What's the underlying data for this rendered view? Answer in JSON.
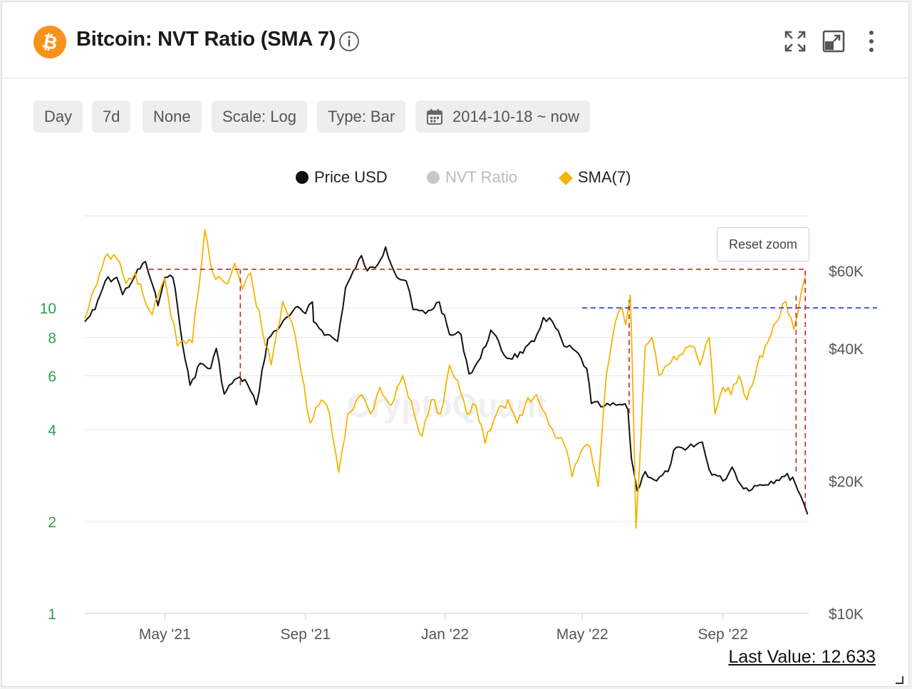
{
  "header": {
    "title": "Bitcoin: NVT Ratio (SMA 7)",
    "icons": [
      "bitcoin-logo-icon",
      "info-icon",
      "expand-icon",
      "popout-icon",
      "more-vertical-icon"
    ]
  },
  "toolbar": {
    "buttons": [
      "Day",
      "7d",
      "None",
      "Scale: Log",
      "Type: Bar"
    ],
    "date_range": "2014-10-18 ~ now"
  },
  "legend": {
    "items": [
      {
        "label": "Price USD",
        "color": "#111111",
        "marker": "circle"
      },
      {
        "label": "NVT Ratio",
        "color": "#c8c8cc",
        "marker": "circle"
      },
      {
        "label": "SMA(7)",
        "color": "#f5b300",
        "marker": "diamond"
      }
    ]
  },
  "reset_zoom": "Reset zoom",
  "watermark": "CryptoQuant",
  "last_value": "Last Value: 12.633",
  "colors": {
    "price": "#111111",
    "sma": "#f5b300",
    "left_axis_text": "#2e9e4f",
    "annotation_red": "#c62828",
    "annotation_blue": "#1e3adb",
    "grid": "#e6e6e6"
  },
  "chart_data": {
    "type": "line",
    "x_range": [
      "2021-02-20",
      "2022-11-15"
    ],
    "x_ticks": [
      {
        "date": "2021-05-01",
        "label": "May '21"
      },
      {
        "date": "2021-09-01",
        "label": "Sep '21"
      },
      {
        "date": "2022-01-01",
        "label": "Jan '22"
      },
      {
        "date": "2022-05-01",
        "label": "May '22"
      },
      {
        "date": "2022-09-01",
        "label": "Sep '22"
      }
    ],
    "y_left": {
      "scale": "log",
      "range": [
        1,
        20
      ],
      "ticks": [
        {
          "value": 1,
          "label": "1"
        },
        {
          "value": 2,
          "label": "2"
        },
        {
          "value": 4,
          "label": "4"
        },
        {
          "value": 6,
          "label": "6"
        },
        {
          "value": 8,
          "label": "8"
        },
        {
          "value": 10,
          "label": "10"
        }
      ]
    },
    "y_right": {
      "scale": "log",
      "range": [
        10000,
        80000
      ],
      "ticks": [
        {
          "value": 10000,
          "label": "$10K"
        },
        {
          "value": 20000,
          "label": "$20K"
        },
        {
          "value": 40000,
          "label": "$40K"
        },
        {
          "value": 60000,
          "label": "$60K"
        }
      ]
    },
    "series": [
      {
        "name": "Price USD",
        "axis": "right",
        "points": [
          [
            "2021-02-20",
            46000
          ],
          [
            "2021-03-01",
            49000
          ],
          [
            "2021-03-10",
            57000
          ],
          [
            "2021-03-20",
            58000
          ],
          [
            "2021-03-25",
            53000
          ],
          [
            "2021-04-05",
            58500
          ],
          [
            "2021-04-14",
            63000
          ],
          [
            "2021-04-20",
            56000
          ],
          [
            "2021-04-25",
            50000
          ],
          [
            "2021-05-01",
            58000
          ],
          [
            "2021-05-08",
            58000
          ],
          [
            "2021-05-12",
            50000
          ],
          [
            "2021-05-19",
            37500
          ],
          [
            "2021-05-23",
            33000
          ],
          [
            "2021-06-01",
            37000
          ],
          [
            "2021-06-10",
            36000
          ],
          [
            "2021-06-15",
            40000
          ],
          [
            "2021-06-22",
            31500
          ],
          [
            "2021-07-01",
            34000
          ],
          [
            "2021-07-10",
            34000
          ],
          [
            "2021-07-20",
            29800
          ],
          [
            "2021-07-30",
            42000
          ],
          [
            "2021-08-07",
            44000
          ],
          [
            "2021-08-15",
            47000
          ],
          [
            "2021-08-23",
            49500
          ],
          [
            "2021-09-01",
            48000
          ],
          [
            "2021-09-07",
            51000
          ],
          [
            "2021-09-08",
            46000
          ],
          [
            "2021-09-20",
            43000
          ],
          [
            "2021-09-29",
            41500
          ],
          [
            "2021-10-06",
            55000
          ],
          [
            "2021-10-15",
            61000
          ],
          [
            "2021-10-20",
            65000
          ],
          [
            "2021-10-25",
            60000
          ],
          [
            "2021-11-01",
            61000
          ],
          [
            "2021-11-10",
            68000
          ],
          [
            "2021-11-20",
            58000
          ],
          [
            "2021-11-28",
            57000
          ],
          [
            "2021-12-04",
            49000
          ],
          [
            "2021-12-15",
            48000
          ],
          [
            "2021-12-27",
            51000
          ],
          [
            "2022-01-05",
            43000
          ],
          [
            "2022-01-15",
            43000
          ],
          [
            "2022-01-22",
            35000
          ],
          [
            "2022-02-01",
            38000
          ],
          [
            "2022-02-10",
            44000
          ],
          [
            "2022-02-24",
            38000
          ],
          [
            "2022-03-10",
            39000
          ],
          [
            "2022-03-20",
            41500
          ],
          [
            "2022-03-28",
            47000
          ],
          [
            "2022-04-05",
            46000
          ],
          [
            "2022-04-15",
            40500
          ],
          [
            "2022-04-25",
            39500
          ],
          [
            "2022-05-05",
            36000
          ],
          [
            "2022-05-09",
            30000
          ],
          [
            "2022-05-20",
            29500
          ],
          [
            "2022-06-05",
            29800
          ],
          [
            "2022-06-10",
            29000
          ],
          [
            "2022-06-13",
            22500
          ],
          [
            "2022-06-18",
            19000
          ],
          [
            "2022-06-25",
            21000
          ],
          [
            "2022-07-05",
            20000
          ],
          [
            "2022-07-15",
            21000
          ],
          [
            "2022-07-20",
            23500
          ],
          [
            "2022-07-30",
            23500
          ],
          [
            "2022-08-14",
            24500
          ],
          [
            "2022-08-20",
            21200
          ],
          [
            "2022-09-01",
            20000
          ],
          [
            "2022-09-09",
            21500
          ],
          [
            "2022-09-19",
            19200
          ],
          [
            "2022-10-01",
            19500
          ],
          [
            "2022-10-25",
            20500
          ],
          [
            "2022-11-01",
            20400
          ],
          [
            "2022-11-08",
            18500
          ],
          [
            "2022-11-14",
            16800
          ]
        ]
      },
      {
        "name": "SMA(7)",
        "axis": "left",
        "points": [
          [
            "2021-02-20",
            9.2
          ],
          [
            "2021-02-26",
            11
          ],
          [
            "2021-03-05",
            13
          ],
          [
            "2021-03-12",
            15
          ],
          [
            "2021-03-20",
            14.5
          ],
          [
            "2021-03-28",
            12
          ],
          [
            "2021-04-05",
            13
          ],
          [
            "2021-04-12",
            11
          ],
          [
            "2021-04-20",
            9.5
          ],
          [
            "2021-05-01",
            12.5
          ],
          [
            "2021-05-12",
            7.5
          ],
          [
            "2021-05-25",
            7.7
          ],
          [
            "2021-06-05",
            18
          ],
          [
            "2021-06-12",
            13
          ],
          [
            "2021-06-25",
            12
          ],
          [
            "2021-07-01",
            14
          ],
          [
            "2021-07-08",
            11.5
          ],
          [
            "2021-07-15",
            13
          ],
          [
            "2021-07-25",
            8.5
          ],
          [
            "2021-08-02",
            6.5
          ],
          [
            "2021-08-12",
            10.5
          ],
          [
            "2021-08-20",
            9
          ],
          [
            "2021-08-28",
            6.2
          ],
          [
            "2021-09-05",
            4.2
          ],
          [
            "2021-09-15",
            5
          ],
          [
            "2021-09-22",
            4.5
          ],
          [
            "2021-09-30",
            2.9
          ],
          [
            "2021-10-08",
            4.5
          ],
          [
            "2021-10-20",
            5.2
          ],
          [
            "2021-10-28",
            4.5
          ],
          [
            "2021-11-05",
            5.5
          ],
          [
            "2021-11-15",
            4.8
          ],
          [
            "2021-11-25",
            6
          ],
          [
            "2021-12-05",
            4.5
          ],
          [
            "2021-12-12",
            3.8
          ],
          [
            "2021-12-20",
            5
          ],
          [
            "2021-12-28",
            4.5
          ],
          [
            "2022-01-05",
            6.5
          ],
          [
            "2022-01-12",
            5.8
          ],
          [
            "2022-01-20",
            4.5
          ],
          [
            "2022-01-28",
            4.8
          ],
          [
            "2022-02-05",
            3.6
          ],
          [
            "2022-02-15",
            4.5
          ],
          [
            "2022-02-25",
            5
          ],
          [
            "2022-03-05",
            4.2
          ],
          [
            "2022-03-12",
            4.8
          ],
          [
            "2022-03-22",
            5.2
          ],
          [
            "2022-03-30",
            4.5
          ],
          [
            "2022-04-05",
            4.0
          ],
          [
            "2022-04-15",
            3.6
          ],
          [
            "2022-04-22",
            2.8
          ],
          [
            "2022-04-30",
            3.4
          ],
          [
            "2022-05-08",
            3.5
          ],
          [
            "2022-05-15",
            2.6
          ],
          [
            "2022-05-22",
            6
          ],
          [
            "2022-05-30",
            9
          ],
          [
            "2022-06-05",
            10
          ],
          [
            "2022-06-08",
            8.8
          ],
          [
            "2022-06-12",
            11
          ],
          [
            "2022-06-14",
            6
          ],
          [
            "2022-06-17",
            1.9
          ],
          [
            "2022-06-20",
            3
          ],
          [
            "2022-06-25",
            7.5
          ],
          [
            "2022-07-01",
            8
          ],
          [
            "2022-07-07",
            6
          ],
          [
            "2022-07-15",
            6.5
          ],
          [
            "2022-07-25",
            7
          ],
          [
            "2022-08-05",
            7.5
          ],
          [
            "2022-08-12",
            6.5
          ],
          [
            "2022-08-20",
            8
          ],
          [
            "2022-08-25",
            4.5
          ],
          [
            "2022-09-01",
            5.5
          ],
          [
            "2022-09-08",
            5.2
          ],
          [
            "2022-09-15",
            6
          ],
          [
            "2022-09-22",
            5
          ],
          [
            "2022-10-01",
            6.5
          ],
          [
            "2022-10-08",
            7.5
          ],
          [
            "2022-10-18",
            9
          ],
          [
            "2022-10-26",
            10.5
          ],
          [
            "2022-11-02",
            8.5
          ],
          [
            "2022-11-08",
            11
          ],
          [
            "2022-11-12",
            12.633
          ]
        ]
      }
    ],
    "annotations": {
      "red_horizontal_price": 60500,
      "blue_horizontal_nvt": 10.0,
      "red_vertical": [
        {
          "date": "2021-07-06",
          "from_price": 33000,
          "to_price": 60500
        },
        {
          "date": "2022-06-11",
          "from_price": 28500,
          "to_nvt": 10.6
        },
        {
          "date": "2022-11-04",
          "from_price": 21000,
          "to_nvt": 11
        },
        {
          "date": "2022-11-12",
          "from_price": 17500,
          "to_price": 60500
        }
      ]
    }
  }
}
